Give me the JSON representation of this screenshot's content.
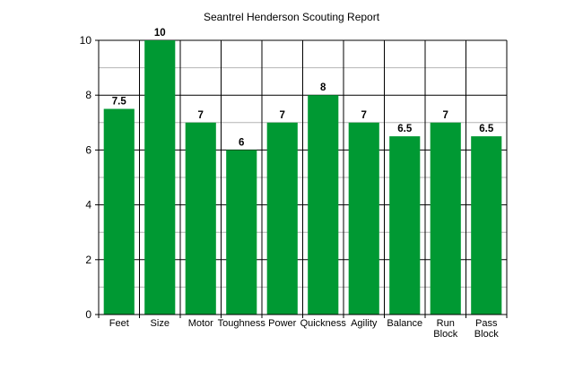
{
  "chart_data": {
    "type": "bar",
    "title": "Seantrel Henderson Scouting Report",
    "xlabel": "",
    "ylabel": "",
    "ylim": [
      0,
      10
    ],
    "yticks": [
      0,
      2,
      4,
      6,
      8,
      10
    ],
    "categories": [
      "Feet",
      "Size",
      "Motor",
      "Toughness",
      "Power",
      "Quickness",
      "Agility",
      "Balance",
      "Run Block",
      "Pass Block"
    ],
    "category_lines": [
      [
        "Feet"
      ],
      [
        "Size"
      ],
      [
        "Motor"
      ],
      [
        "Toughness"
      ],
      [
        "Power"
      ],
      [
        "Quickness"
      ],
      [
        "Agility"
      ],
      [
        "Balance"
      ],
      [
        "Run",
        "Block"
      ],
      [
        "Pass",
        "Block"
      ]
    ],
    "values": [
      7.5,
      10,
      7,
      6,
      7,
      8,
      7,
      6.5,
      7,
      6.5
    ],
    "data_labels": [
      "7.5",
      "10",
      "7",
      "6",
      "7",
      "8",
      "7",
      "6.5",
      "7",
      "6.5"
    ],
    "grid": "horizontal major and minor, vertical category separators",
    "legend": "none",
    "colors": {
      "bar": "#009933",
      "major_grid": "#000000",
      "minor_grid": "#b4b4b4",
      "axis": "#000000"
    }
  }
}
